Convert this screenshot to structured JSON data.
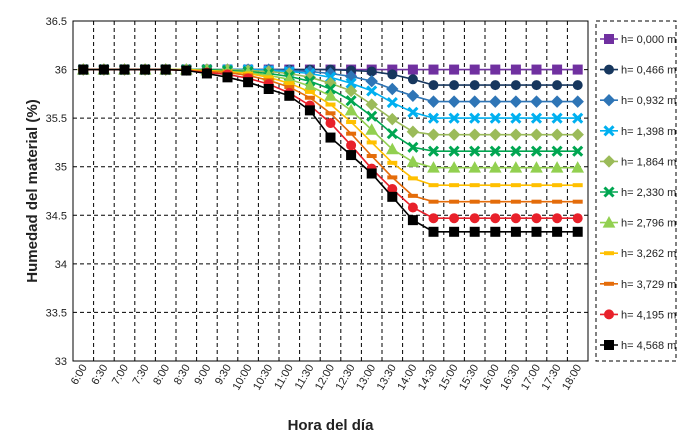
{
  "chart_data": {
    "type": "line",
    "title": "",
    "xlabel": "Hora del día",
    "ylabel": "Humedad del material (%)",
    "ylim": [
      33,
      36.5
    ],
    "yticks": [
      33,
      33.5,
      34,
      34.5,
      35,
      35.5,
      36,
      36.5
    ],
    "ytick_labels": [
      "33",
      "33.5",
      "34",
      "34.5",
      "35",
      "35.5",
      "36",
      "36.5"
    ],
    "grid": "dashed, both axes",
    "legend_position": "right",
    "categories": [
      "6:00",
      "6:30",
      "7:00",
      "7:30",
      "8:00",
      "8:30",
      "9:00",
      "9:30",
      "10:00",
      "10:30",
      "11:00",
      "11:30",
      "12:00",
      "12:30",
      "13:00",
      "13:30",
      "14:00",
      "14:30",
      "15:00",
      "15:30",
      "16:00",
      "16:30",
      "17:00",
      "17:30",
      "18:00"
    ],
    "series": [
      {
        "name": "h= 0,000 m",
        "color": "#7030a0",
        "marker": "square",
        "values": [
          36,
          36,
          36,
          36,
          36,
          36,
          36,
          36,
          36,
          36,
          36,
          36,
          36,
          36,
          36,
          36,
          36,
          36,
          36,
          36,
          36,
          36,
          36,
          36,
          36
        ]
      },
      {
        "name": "h= 0,466 m",
        "color": "#17375e",
        "marker": "circle",
        "values": [
          36,
          36,
          36,
          36,
          36,
          36,
          36,
          36,
          36,
          36,
          36,
          36,
          36,
          35.99,
          35.98,
          35.95,
          35.9,
          35.84,
          35.84,
          35.84,
          35.84,
          35.84,
          35.84,
          35.84,
          35.84
        ]
      },
      {
        "name": "h= 0,932 m",
        "color": "#2e75b6",
        "marker": "diamond",
        "values": [
          36,
          36,
          36,
          36,
          36,
          36,
          36,
          36,
          36,
          36,
          35.99,
          35.98,
          35.96,
          35.93,
          35.88,
          35.8,
          35.73,
          35.67,
          35.67,
          35.67,
          35.67,
          35.67,
          35.67,
          35.67,
          35.67
        ]
      },
      {
        "name": "h= 1,398 m",
        "color": "#00b0f0",
        "marker": "x",
        "values": [
          36,
          36,
          36,
          36,
          36,
          36,
          36,
          36,
          36,
          35.99,
          35.98,
          35.96,
          35.92,
          35.86,
          35.78,
          35.66,
          35.56,
          35.5,
          35.5,
          35.5,
          35.5,
          35.5,
          35.5,
          35.5,
          35.5
        ]
      },
      {
        "name": "h= 1,864 m",
        "color": "#9bbb59",
        "marker": "diamond",
        "values": [
          36,
          36,
          36,
          36,
          36,
          36,
          36,
          36,
          35.99,
          35.98,
          35.96,
          35.92,
          35.86,
          35.78,
          35.64,
          35.49,
          35.36,
          35.33,
          35.33,
          35.33,
          35.33,
          35.33,
          35.33,
          35.33,
          35.33
        ]
      },
      {
        "name": "h= 2,330 m",
        "color": "#00a651",
        "marker": "x",
        "values": [
          36,
          36,
          36,
          36,
          36,
          36,
          36,
          35.99,
          35.98,
          35.96,
          35.93,
          35.88,
          35.8,
          35.68,
          35.52,
          35.34,
          35.2,
          35.16,
          35.16,
          35.16,
          35.16,
          35.16,
          35.16,
          35.16,
          35.16
        ]
      },
      {
        "name": "h= 2,796 m",
        "color": "#92d050",
        "marker": "triangle",
        "values": [
          36,
          36,
          36,
          36,
          36,
          36,
          35.99,
          35.98,
          35.97,
          35.94,
          35.9,
          35.83,
          35.73,
          35.58,
          35.38,
          35.18,
          35.05,
          34.99,
          34.99,
          34.99,
          34.99,
          34.99,
          34.99,
          34.99,
          34.99
        ]
      },
      {
        "name": "h= 3,262 m",
        "color": "#ffc000",
        "marker": "dash",
        "values": [
          36,
          36,
          36,
          36,
          36,
          36,
          35.99,
          35.98,
          35.96,
          35.92,
          35.86,
          35.77,
          35.64,
          35.46,
          35.25,
          35.04,
          34.88,
          34.81,
          34.81,
          34.81,
          34.81,
          34.81,
          34.81,
          34.81,
          34.81
        ]
      },
      {
        "name": "h= 3,729 m",
        "color": "#e46c0a",
        "marker": "dash",
        "values": [
          36,
          36,
          36,
          36,
          36,
          35.99,
          35.98,
          35.97,
          35.94,
          35.89,
          35.82,
          35.71,
          35.55,
          35.34,
          35.11,
          34.89,
          34.7,
          34.64,
          34.64,
          34.64,
          34.64,
          34.64,
          34.64,
          34.64,
          34.64
        ]
      },
      {
        "name": "h= 4,195 m",
        "color": "#e8202a",
        "marker": "circle",
        "values": [
          36,
          36,
          36,
          36,
          36,
          35.99,
          35.97,
          35.95,
          35.91,
          35.85,
          35.76,
          35.63,
          35.45,
          35.22,
          34.98,
          34.77,
          34.58,
          34.47,
          34.47,
          34.47,
          34.47,
          34.47,
          34.47,
          34.47,
          34.47
        ]
      },
      {
        "name": "h= 4,568 m",
        "color": "#000000",
        "marker": "square",
        "values": [
          36,
          36,
          36,
          36,
          36,
          35.99,
          35.96,
          35.92,
          35.87,
          35.8,
          35.73,
          35.58,
          35.3,
          35.12,
          34.93,
          34.69,
          34.45,
          34.33,
          34.33,
          34.33,
          34.33,
          34.33,
          34.33,
          34.33,
          34.33
        ]
      }
    ]
  }
}
